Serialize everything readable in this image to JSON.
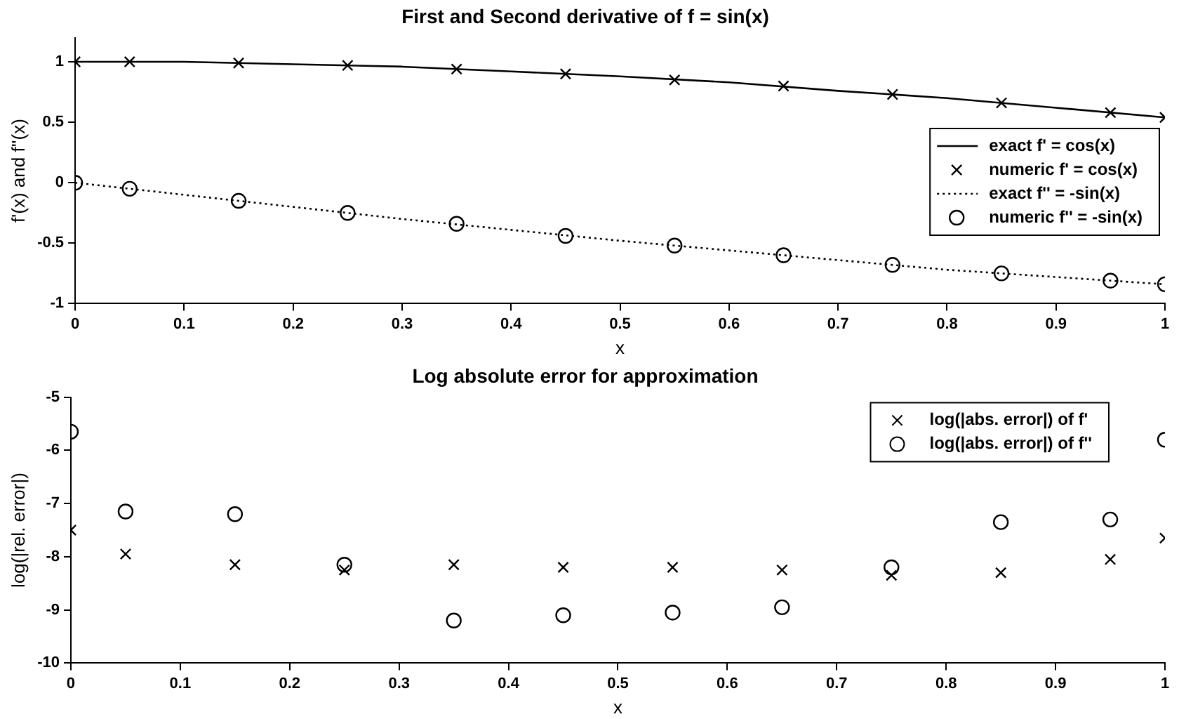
{
  "chart_data": [
    {
      "type": "line",
      "title": "First and Second derivative of f = sin(x)",
      "xlabel": "x",
      "ylabel": "f'(x) and f''(x)",
      "xlim": [
        0,
        1
      ],
      "ylim": [
        -1,
        1.2
      ],
      "xticks": [
        0,
        0.1,
        0.2,
        0.3,
        0.4,
        0.5,
        0.6,
        0.7,
        0.8,
        0.9,
        1
      ],
      "yticks": [
        -1,
        -0.5,
        0,
        0.5,
        1
      ],
      "grid": false,
      "legend": "right",
      "series": [
        {
          "name": "exact f' = cos(x)",
          "color": "#000000",
          "marker": "none",
          "line_style": "solid",
          "x": [
            0,
            0.1,
            0.2,
            0.3,
            0.4,
            0.5,
            0.6,
            0.7,
            0.8,
            0.9,
            1
          ],
          "values": [
            1,
            1,
            0.98,
            0.96,
            0.92,
            0.88,
            0.83,
            0.76,
            0.7,
            0.62,
            0.54
          ]
        },
        {
          "name": "numeric f' = cos(x)",
          "type": "scatter",
          "color": "#000000",
          "marker": "cross",
          "x": [
            0,
            0.05,
            0.15,
            0.25,
            0.35,
            0.45,
            0.55,
            0.65,
            0.75,
            0.85,
            0.95,
            1
          ],
          "values": [
            1,
            1,
            0.99,
            0.97,
            0.94,
            0.9,
            0.85,
            0.8,
            0.73,
            0.66,
            0.58,
            0.54
          ]
        },
        {
          "name": "exact f'' = -sin(x)",
          "color": "#000000",
          "marker": "none",
          "line_style": "dotted",
          "x": [
            0,
            0.1,
            0.2,
            0.3,
            0.4,
            0.5,
            0.6,
            0.7,
            0.8,
            0.9,
            1
          ],
          "values": [
            0,
            -0.1,
            -0.2,
            -0.3,
            -0.39,
            -0.48,
            -0.56,
            -0.64,
            -0.72,
            -0.78,
            -0.84
          ]
        },
        {
          "name": "numeric f'' = -sin(x)",
          "type": "scatter",
          "color": "#000000",
          "marker": "circle",
          "x": [
            0,
            0.05,
            0.15,
            0.25,
            0.35,
            0.45,
            0.55,
            0.65,
            0.75,
            0.85,
            0.95,
            1
          ],
          "values": [
            0,
            -0.05,
            -0.15,
            -0.25,
            -0.34,
            -0.44,
            -0.52,
            -0.6,
            -0.68,
            -0.75,
            -0.81,
            -0.84
          ]
        }
      ]
    },
    {
      "type": "scatter",
      "title": "Log absolute error for approximation",
      "xlabel": "x",
      "ylabel": "log(|rel. error|)",
      "xlim": [
        0,
        1
      ],
      "ylim": [
        -10,
        -5
      ],
      "xticks": [
        0,
        0.1,
        0.2,
        0.3,
        0.4,
        0.5,
        0.6,
        0.7,
        0.8,
        0.9,
        1
      ],
      "yticks": [
        -10,
        -9,
        -8,
        -7,
        -6,
        -5
      ],
      "grid": false,
      "legend": "top right",
      "series": [
        {
          "name": "log(|abs. error|) of f'",
          "color": "#000000",
          "marker": "cross",
          "x": [
            0,
            0.05,
            0.15,
            0.25,
            0.35,
            0.45,
            0.55,
            0.65,
            0.75,
            0.85,
            0.95,
            1
          ],
          "values": [
            -7.5,
            -7.95,
            -8.15,
            -8.25,
            -8.15,
            -8.2,
            -8.2,
            -8.25,
            -8.35,
            -8.3,
            -8.05,
            -7.65
          ]
        },
        {
          "name": "log(|abs. error|) of f''",
          "color": "#000000",
          "marker": "circle",
          "x": [
            0,
            0.05,
            0.15,
            0.25,
            0.35,
            0.45,
            0.55,
            0.65,
            0.75,
            0.85,
            0.95,
            1
          ],
          "values": [
            -5.65,
            -7.15,
            -7.2,
            -8.15,
            -9.2,
            -9.1,
            -9.05,
            -8.95,
            -8.2,
            -7.35,
            -7.3,
            -5.8
          ]
        }
      ]
    }
  ]
}
